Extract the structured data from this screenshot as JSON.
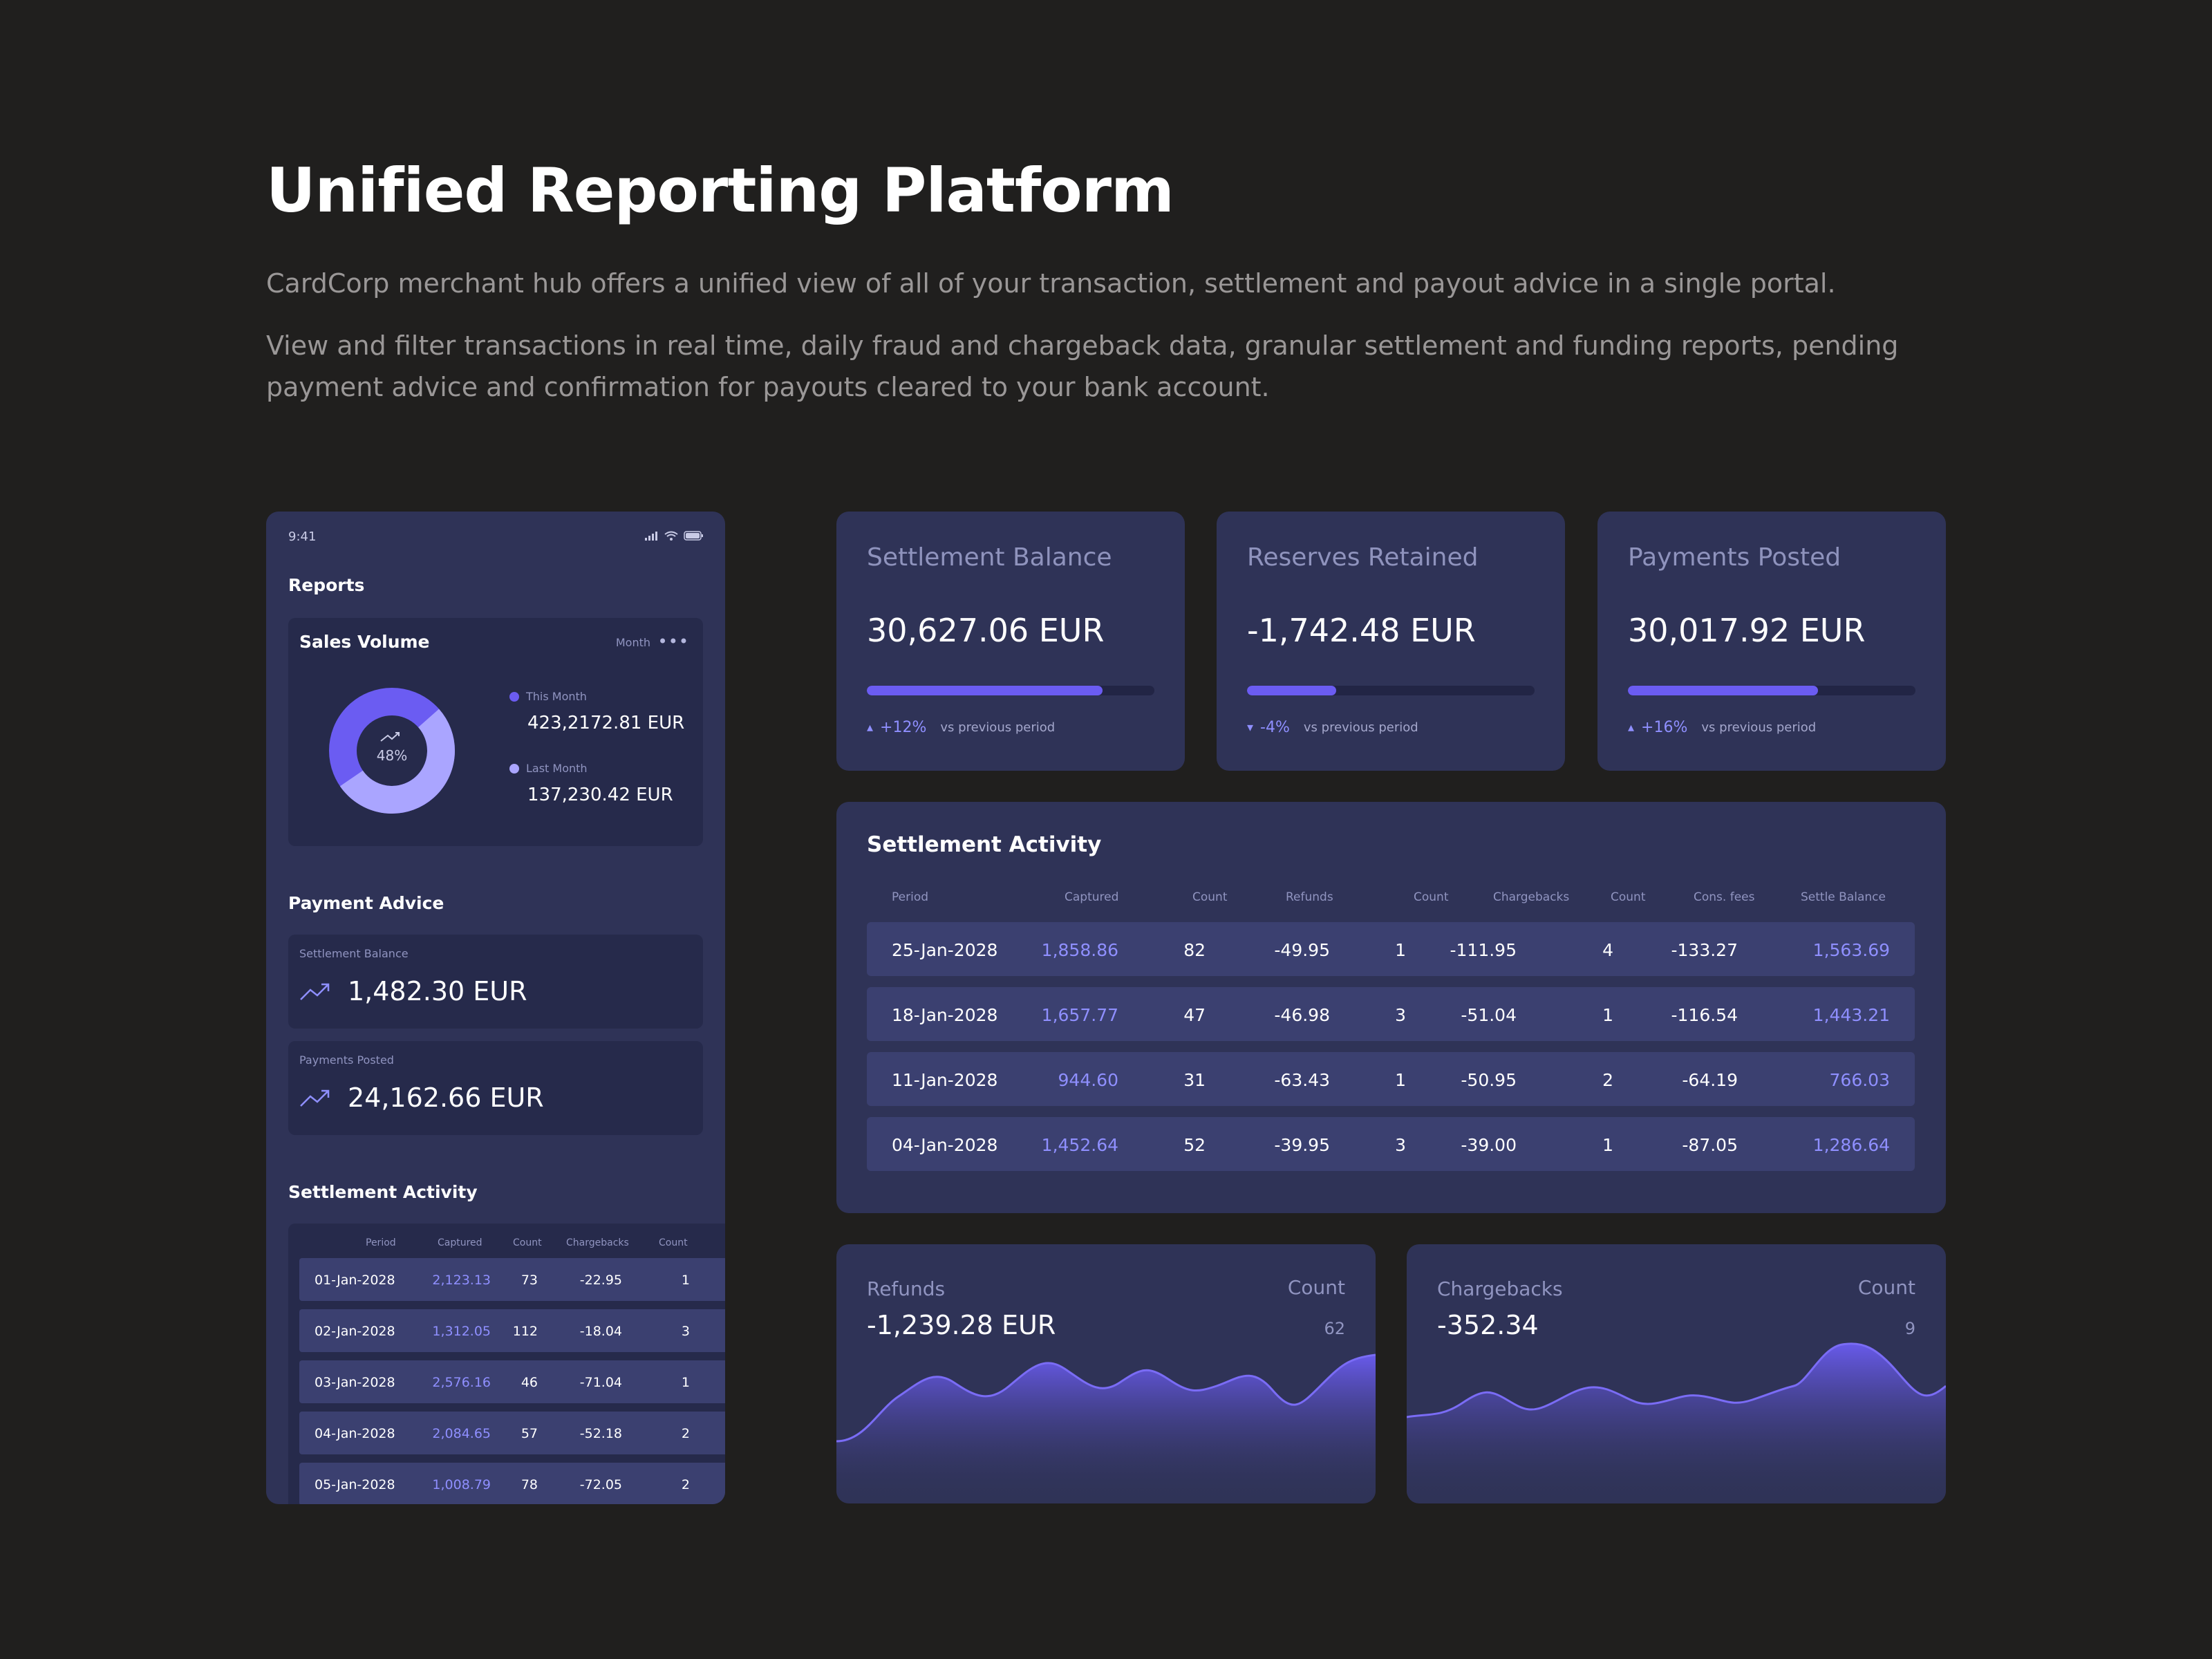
{
  "hero": {
    "title": "Unified Reporting Platform",
    "p1": "CardCorp merchant hub offers a unified view of all of your transaction, settlement and payout advice in a single portal.",
    "p2a": "View and filter transactions in real time, daily fraud and chargeback data, granular settlement and funding reports, pending",
    "p2b": "payment advice and confirmation for payouts cleared to your bank account."
  },
  "phone": {
    "time": "9:41",
    "reports_title": "Reports",
    "sales_volume": {
      "title": "Sales Volume",
      "period": "Month",
      "percent": "48%",
      "this_month_label": "This Month",
      "this_month_value": "423,2172.81 EUR",
      "last_month_label": "Last Month",
      "last_month_value": "137,230.42 EUR",
      "share": 0.48
    },
    "payment_advice": {
      "title": "Payment Advice",
      "settlement_label": "Settlement Balance",
      "settlement_value": "1,482.30 EUR",
      "posted_label": "Payments Posted",
      "posted_value": "24,162.66 EUR"
    },
    "settlement_activity": {
      "title": "Settlement Activity",
      "headers": [
        "Period",
        "Captured",
        "Count",
        "Chargebacks",
        "Count"
      ],
      "rows": [
        [
          "01-Jan-2028",
          "2,123.13",
          "73",
          "-22.95",
          "1"
        ],
        [
          "02-Jan-2028",
          "1,312.05",
          "112",
          "-18.04",
          "3"
        ],
        [
          "03-Jan-2028",
          "2,576.16",
          "46",
          "-71.04",
          "1"
        ],
        [
          "04-Jan-2028",
          "2,084.65",
          "57",
          "-52.18",
          "2"
        ],
        [
          "05-Jan-2028",
          "1,008.79",
          "78",
          "-72.05",
          "2"
        ]
      ]
    }
  },
  "stats": [
    {
      "title": "Settlement Balance",
      "value": "30,627.06 EUR",
      "progress": 0.82,
      "direction": "up",
      "change": "+12%",
      "vs": "vs previous period"
    },
    {
      "title": "Reserves Retained",
      "value": "-1,742.48 EUR",
      "progress": 0.31,
      "direction": "down",
      "change": "-4%",
      "vs": "vs previous period"
    },
    {
      "title": "Payments Posted",
      "value": "30,017.92 EUR",
      "progress": 0.66,
      "direction": "up",
      "change": "+16%",
      "vs": "vs previous period"
    }
  ],
  "activity": {
    "title": "Settlement Activity",
    "headers": [
      "Period",
      "Captured",
      "Count",
      "Refunds",
      "Count",
      "Chargebacks",
      "Count",
      "Cons. fees",
      "Settle Balance"
    ],
    "rows": [
      [
        "25-Jan-2028",
        "1,858.86",
        "82",
        "-49.95",
        "1",
        "-111.95",
        "4",
        "-133.27",
        "1,563.69"
      ],
      [
        "18-Jan-2028",
        "1,657.77",
        "47",
        "-46.98",
        "3",
        "-51.04",
        "1",
        "-116.54",
        "1,443.21"
      ],
      [
        "11-Jan-2028",
        "944.60",
        "31",
        "-63.43",
        "1",
        "-50.95",
        "2",
        "-64.19",
        "766.03"
      ],
      [
        "04-Jan-2028",
        "1,452.64",
        "52",
        "-39.95",
        "3",
        "-39.00",
        "1",
        "-87.05",
        "1,286.64"
      ]
    ]
  },
  "areas": [
    {
      "title": "Refunds",
      "value": "-1,239.28 EUR",
      "count_label": "Count",
      "count": "62"
    },
    {
      "title": "Chargebacks",
      "value": "-352.34",
      "count_label": "Count",
      "count": "9"
    }
  ],
  "colors": {
    "accent": "#6b5cf2",
    "accent_light": "#8f8fff",
    "card": "#2f3357",
    "bg": "#201f1e"
  }
}
